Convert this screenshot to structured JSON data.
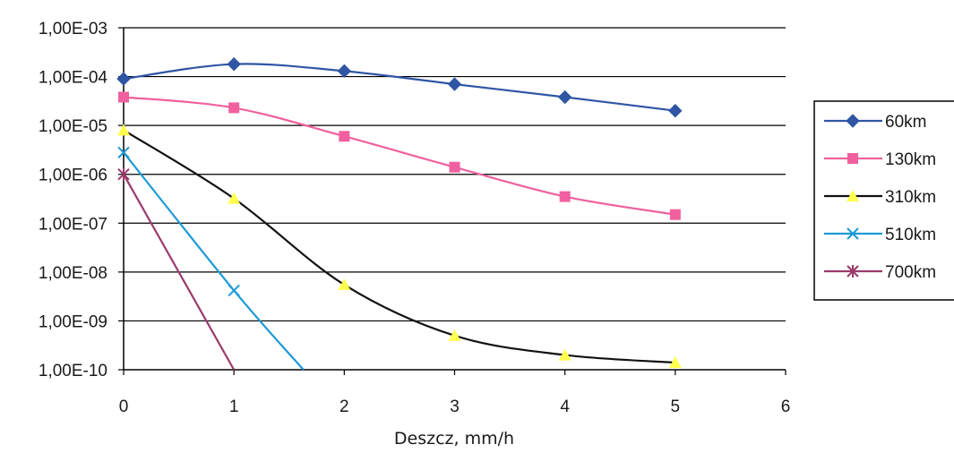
{
  "chart_data": {
    "type": "line",
    "title": "",
    "xlabel": "Deszcz, mm/h",
    "ylabel": "",
    "y_scale": "log",
    "xlim": [
      0,
      6
    ],
    "ylim": [
      1e-10,
      0.001
    ],
    "x_ticks": [
      "0",
      "1",
      "2",
      "3",
      "4",
      "5",
      "6"
    ],
    "y_ticks": [
      "1,00E-03",
      "1,00E-04",
      "1,00E-05",
      "1,00E-06",
      "1,00E-07",
      "1,00E-08",
      "1,00E-09",
      "1,00E-10"
    ],
    "grid": "horizontal",
    "legend_position": "right",
    "series": [
      {
        "name": "60km",
        "color": "#2f55a4",
        "marker": "diamond",
        "x": [
          0,
          1,
          2,
          3,
          4,
          5
        ],
        "y": [
          9e-05,
          0.00018,
          0.00013,
          7e-05,
          3.8e-05,
          2e-05
        ]
      },
      {
        "name": "130km",
        "color": "#f0609e",
        "marker": "square",
        "x": [
          0,
          1,
          2,
          3,
          4,
          5
        ],
        "y": [
          3.8e-05,
          2.3e-05,
          6e-06,
          1.4e-06,
          3.5e-07,
          1.5e-07
        ]
      },
      {
        "name": "310km",
        "color": "#111111",
        "marker": "triangle",
        "marker_color": "#ffff4d",
        "x": [
          0,
          1,
          2,
          3,
          4,
          5
        ],
        "y": [
          8e-06,
          3.2e-07,
          5.5e-09,
          5e-10,
          2e-10,
          1.4e-10
        ]
      },
      {
        "name": "510km",
        "color": "#1b9ad6",
        "marker": "x",
        "x": [
          0,
          1,
          1.63
        ],
        "y": [
          2.8e-06,
          4.2e-09,
          1e-10
        ]
      },
      {
        "name": "700km",
        "color": "#9b3a6b",
        "marker": "star",
        "x": [
          0,
          1
        ],
        "y": [
          1e-06,
          1e-10
        ]
      }
    ]
  }
}
